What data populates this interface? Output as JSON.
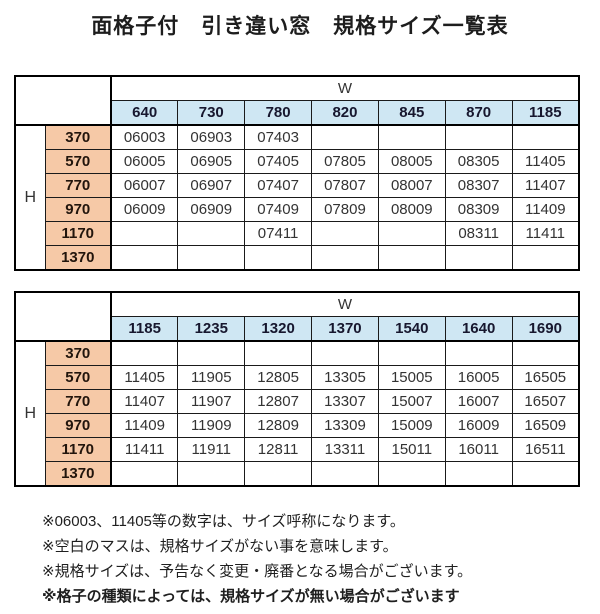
{
  "title": "面格子付　引き違い窓　規格サイズ一覧表",
  "colors": {
    "column_header_blue": "#cfe7f3",
    "row_header_salmon": "#f6c9a7",
    "border_black": "#000000"
  },
  "tables": [
    {
      "w_label": "W",
      "h_label": "H",
      "columns": [
        "640",
        "730",
        "780",
        "820",
        "845",
        "870",
        "1185"
      ],
      "rows": [
        {
          "h": "370",
          "cells": [
            "06003",
            "06903",
            "07403",
            "",
            "",
            "",
            ""
          ]
        },
        {
          "h": "570",
          "cells": [
            "06005",
            "06905",
            "07405",
            "07805",
            "08005",
            "08305",
            "11405"
          ]
        },
        {
          "h": "770",
          "cells": [
            "06007",
            "06907",
            "07407",
            "07807",
            "08007",
            "08307",
            "11407"
          ]
        },
        {
          "h": "970",
          "cells": [
            "06009",
            "06909",
            "07409",
            "07809",
            "08009",
            "08309",
            "11409"
          ]
        },
        {
          "h": "1170",
          "cells": [
            "",
            "",
            "07411",
            "",
            "",
            "08311",
            "11411"
          ]
        },
        {
          "h": "1370",
          "cells": [
            "",
            "",
            "",
            "",
            "",
            "",
            ""
          ]
        }
      ]
    },
    {
      "w_label": "W",
      "h_label": "H",
      "columns": [
        "1185",
        "1235",
        "1320",
        "1370",
        "1540",
        "1640",
        "1690"
      ],
      "rows": [
        {
          "h": "370",
          "cells": [
            "",
            "",
            "",
            "",
            "",
            "",
            ""
          ]
        },
        {
          "h": "570",
          "cells": [
            "11405",
            "11905",
            "12805",
            "13305",
            "15005",
            "16005",
            "16505"
          ]
        },
        {
          "h": "770",
          "cells": [
            "11407",
            "11907",
            "12807",
            "13307",
            "15007",
            "16007",
            "16507"
          ]
        },
        {
          "h": "970",
          "cells": [
            "11409",
            "11909",
            "12809",
            "13309",
            "15009",
            "16009",
            "16509"
          ]
        },
        {
          "h": "1170",
          "cells": [
            "11411",
            "11911",
            "12811",
            "13311",
            "15011",
            "16011",
            "16511"
          ]
        },
        {
          "h": "1370",
          "cells": [
            "",
            "",
            "",
            "",
            "",
            "",
            ""
          ]
        }
      ]
    }
  ],
  "notes": [
    {
      "text": "※06003、11405等の数字は、サイズ呼称になります。"
    },
    {
      "text": "※空白のマスは、規格サイズがない事を意味します。"
    },
    {
      "text": "※規格サイズは、予告なく変更・廃番となる場合がございます。"
    },
    {
      "text": "※格子の種類によっては、規格サイズが無い場合がございます"
    }
  ]
}
